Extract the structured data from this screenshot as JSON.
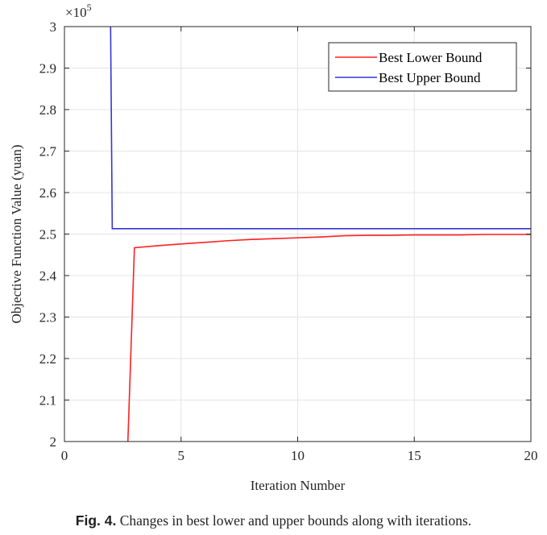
{
  "chart_data": {
    "type": "line",
    "xlabel": "Iteration Number",
    "ylabel": "Objective Function Value (yuan)",
    "y_multiplier_label": "×10",
    "y_multiplier_exponent": "5",
    "xlim": [
      0,
      20
    ],
    "ylim": [
      2,
      3
    ],
    "x_ticks": [
      0,
      5,
      10,
      15,
      20
    ],
    "x_tick_labels": [
      "0",
      "5",
      "10",
      "15",
      "20"
    ],
    "y_ticks": [
      2,
      2.1,
      2.2,
      2.3,
      2.4,
      2.5,
      2.6,
      2.7,
      2.8,
      2.9,
      3
    ],
    "y_tick_labels": [
      "2",
      "2.1",
      "2.2",
      "2.3",
      "2.4",
      "2.5",
      "2.6",
      "2.7",
      "2.8",
      "2.9",
      "3"
    ],
    "grid": true,
    "legend_position": "top-right",
    "series": [
      {
        "name": "Best Lower Bound",
        "color": "#ff2020",
        "x": [
          2.6,
          3,
          4,
          5,
          6,
          7,
          8,
          9,
          10,
          11,
          12,
          13,
          14,
          15,
          16,
          17,
          18,
          19,
          20
        ],
        "y": [
          1.8,
          2.467,
          2.472,
          2.476,
          2.48,
          2.484,
          2.487,
          2.489,
          2.491,
          2.493,
          2.496,
          2.497,
          2.497,
          2.498,
          2.498,
          2.498,
          2.499,
          2.499,
          2.499
        ]
      },
      {
        "name": "Best Upper Bound",
        "color": "#3535d8",
        "x": [
          1.95,
          2.05,
          20
        ],
        "y": [
          3.2,
          2.513,
          2.513
        ]
      }
    ]
  },
  "caption": {
    "prefix": "Fig. 4.",
    "text": " Changes in best lower and upper bounds along with iterations."
  }
}
